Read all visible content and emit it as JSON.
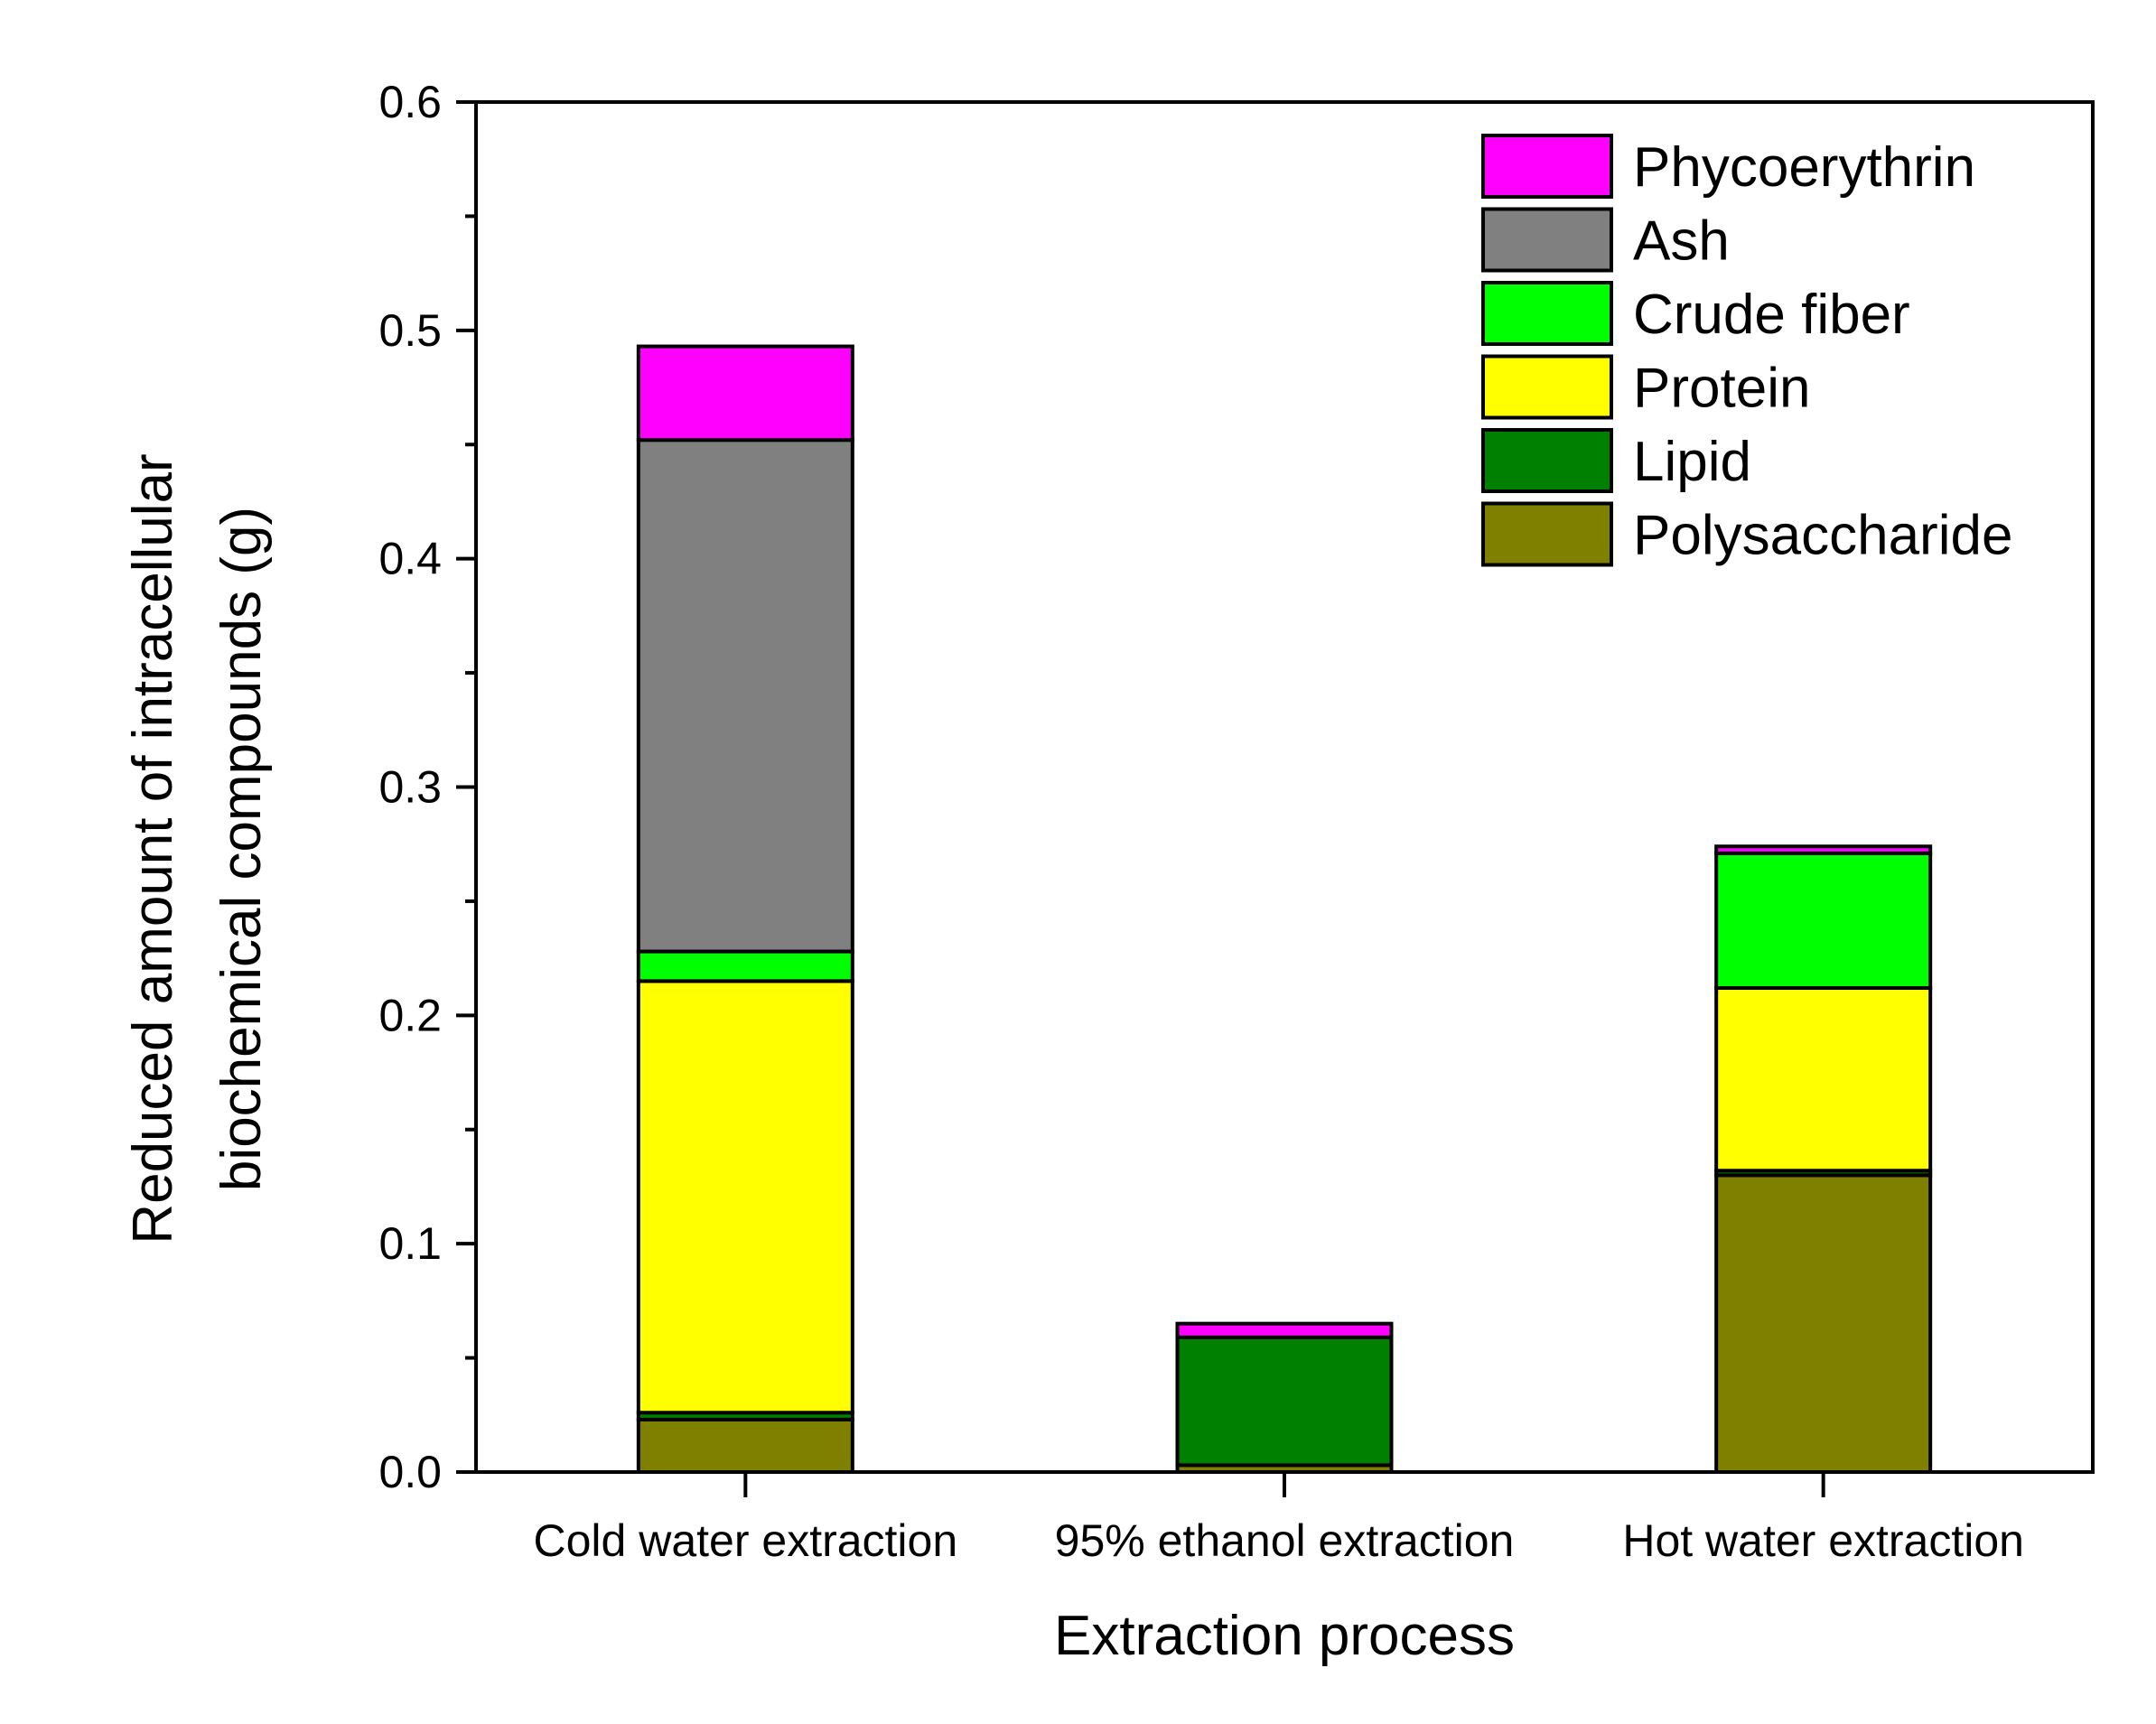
{
  "chart_data": {
    "type": "bar",
    "stacked": true,
    "title": "",
    "xlabel": "Extraction process",
    "ylabel_lines": [
      "Reduced amount of intracellular",
      "biochemical compounds (g)"
    ],
    "ylim": [
      0,
      0.6
    ],
    "yticks": [
      "0.0",
      "0.1",
      "0.2",
      "0.3",
      "0.4",
      "0.5",
      "0.6"
    ],
    "ytick_values": [
      0,
      0.1,
      0.2,
      0.3,
      0.4,
      0.5,
      0.6
    ],
    "categories": [
      "Cold water extraction",
      "95% ethanol extraction",
      "Hot water extraction"
    ],
    "legend_position": "top-right",
    "series": [
      {
        "name": "Polysaccharide",
        "color": "#808000",
        "values": [
          0.023,
          0.003,
          0.13
        ]
      },
      {
        "name": "Lipid",
        "color": "#008000",
        "values": [
          0.003,
          0.056,
          0.002
        ]
      },
      {
        "name": "Protein",
        "color": "#FFFF00",
        "values": [
          0.189,
          0.0,
          0.08
        ]
      },
      {
        "name": "Crude fiber",
        "color": "#00FF00",
        "values": [
          0.013,
          0.0,
          0.059
        ]
      },
      {
        "name": "Ash",
        "color": "#808080",
        "values": [
          0.224,
          0.0,
          0.0
        ]
      },
      {
        "name": "Phycoerythrin",
        "color": "#FF00FF",
        "values": [
          0.041,
          0.006,
          0.003
        ]
      }
    ]
  }
}
